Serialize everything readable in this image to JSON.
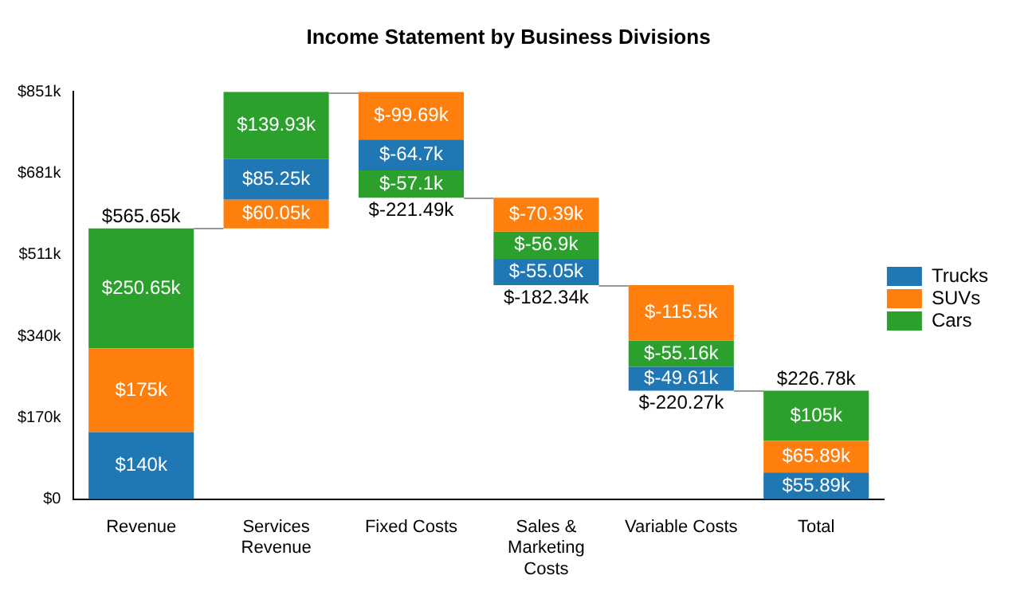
{
  "chart_data": {
    "type": "bar",
    "title": "Income Statement by Business Divisions",
    "categories": [
      "Revenue",
      "Services Revenue",
      "Fixed Costs",
      "Sales & Marketing Costs",
      "Variable Costs",
      "Total"
    ],
    "series": [
      {
        "name": "Trucks",
        "color": "#1f77b4",
        "values": [
          140,
          85.25,
          -64.7,
          -55.05,
          -49.61,
          55.89
        ],
        "base": [
          0,
          625.7,
          751.19,
          502.1,
          276.39,
          0
        ],
        "value_labels": [
          "$140k",
          "$85.25k",
          "$-64.7k",
          "$-55.05k",
          "$-49.61k",
          "$55.89k"
        ]
      },
      {
        "name": "SUVs",
        "color": "#ff7f0e",
        "values": [
          175,
          60.05,
          -99.69,
          -70.39,
          -115.5,
          65.89
        ],
        "base": [
          140,
          565.65,
          850.88,
          629.39,
          447.05,
          55.89
        ],
        "value_labels": [
          "$175k",
          "$60.05k",
          "$-99.69k",
          "$-70.39k",
          "$-115.5k",
          "$65.89k"
        ]
      },
      {
        "name": "Cars",
        "color": "#2ca02c",
        "values": [
          250.65,
          139.93,
          -57.1,
          -56.9,
          -55.16,
          105
        ],
        "base": [
          315,
          710.95,
          686.49,
          559,
          331.55,
          121.78
        ],
        "value_labels": [
          "$250.65k",
          "$139.93k",
          "$-57.1k",
          "$-56.9k",
          "$-55.16k",
          "$105k"
        ]
      }
    ],
    "totals": [
      "$565.65k",
      null,
      "$-221.49k",
      "$-182.34k",
      "$-220.27k",
      "$226.78k"
    ],
    "ylim": [
      0,
      850.88
    ],
    "yticks": [
      {
        "value": 0,
        "label": "$0"
      },
      {
        "value": 170.18,
        "label": "$170k"
      },
      {
        "value": 340.35,
        "label": "$340k"
      },
      {
        "value": 510.53,
        "label": "$511k"
      },
      {
        "value": 680.7,
        "label": "$681k"
      },
      {
        "value": 850.88,
        "label": "$851k"
      }
    ],
    "grid": false,
    "legend": "right"
  }
}
